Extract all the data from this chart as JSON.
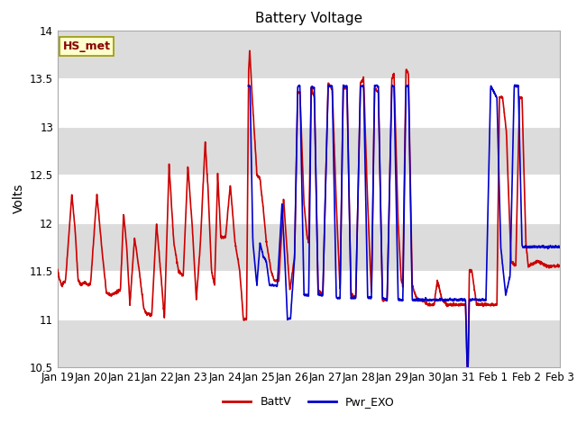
{
  "title": "Battery Voltage",
  "ylabel": "Volts",
  "ylim": [
    10.5,
    14.0
  ],
  "yticks": [
    10.5,
    11.0,
    11.5,
    12.0,
    12.5,
    13.0,
    13.5,
    14.0
  ],
  "xlabel_dates": [
    "Jan 19",
    "Jan 20",
    "Jan 21",
    "Jan 22",
    "Jan 23",
    "Jan 24",
    "Jan 25",
    "Jan 26",
    "Jan 27",
    "Jan 28",
    "Jan 29",
    "Jan 30",
    "Jan 31",
    "Feb 1",
    "Feb 2",
    "Feb 3"
  ],
  "line_color_batt": "#CC0000",
  "line_color_exo": "#0000CC",
  "line_width": 1.2,
  "legend_labels": [
    "BattV",
    "Pwr_EXO"
  ],
  "annotation_text": "HS_met",
  "annotation_bg": "#FFFFCC",
  "annotation_border": "#999900",
  "background_color": "#FFFFFF",
  "band_color": "#DCDCDC",
  "title_fontsize": 11,
  "axis_fontsize": 10,
  "tick_fontsize": 8.5
}
